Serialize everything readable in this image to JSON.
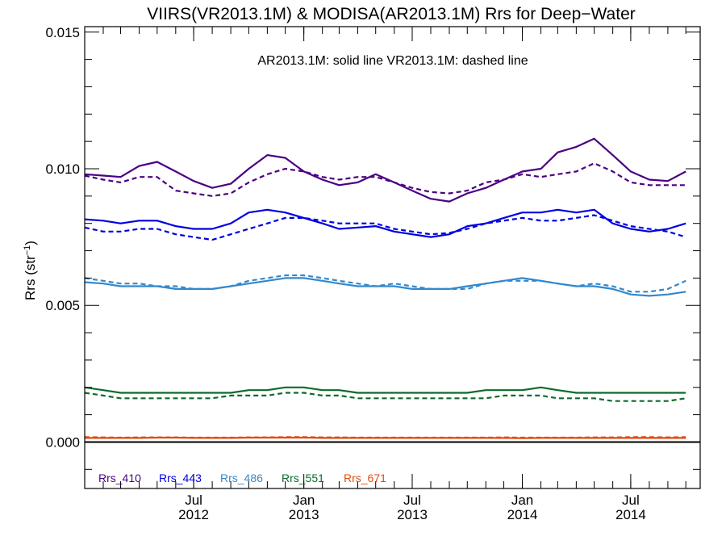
{
  "chart_data": {
    "type": "line",
    "title": "VIIRS(VR2013.1M) & MODISA(AR2013.1M)  Rrs for Deep−Water",
    "annotation": "AR2013.1M: solid line   VR2013.1M: dashed line",
    "ylabel": "Rrs (str",
    "ylabel_sup": "−1",
    "ylabel_close": ")",
    "ylim": [
      -0.0017,
      0.0152
    ],
    "xlim": [
      "2012-01-01",
      "2014-10-25"
    ],
    "yticks": [
      {
        "value": 0.0,
        "label": "0.000"
      },
      {
        "value": 0.005,
        "label": "0.005"
      },
      {
        "value": 0.01,
        "label": "0.010"
      },
      {
        "value": 0.015,
        "label": "0.015"
      }
    ],
    "xticks": [
      {
        "date": "2012-07-01",
        "line1": "Jul",
        "line2": "2012"
      },
      {
        "date": "2013-01-01",
        "line1": "Jan",
        "line2": "2013"
      },
      {
        "date": "2013-07-01",
        "line1": "Jul",
        "line2": "2013"
      },
      {
        "date": "2014-01-01",
        "line1": "Jan",
        "line2": "2014"
      },
      {
        "date": "2014-07-01",
        "line1": "Jul",
        "line2": "2014"
      }
    ],
    "x": [
      "2012-01-01",
      "2012-02-01",
      "2012-03-01",
      "2012-04-01",
      "2012-05-01",
      "2012-06-01",
      "2012-07-01",
      "2012-08-01",
      "2012-09-01",
      "2012-10-01",
      "2012-11-01",
      "2012-12-01",
      "2013-01-01",
      "2013-02-01",
      "2013-03-01",
      "2013-04-01",
      "2013-05-01",
      "2013-06-01",
      "2013-07-01",
      "2013-08-01",
      "2013-09-01",
      "2013-10-01",
      "2013-11-01",
      "2013-12-01",
      "2014-01-01",
      "2014-02-01",
      "2014-03-01",
      "2014-04-01",
      "2014-05-01",
      "2014-06-01",
      "2014-07-01",
      "2014-08-01",
      "2014-09-01",
      "2014-10-01"
    ],
    "series": [
      {
        "name": "Rrs_410",
        "color": "#4b0082",
        "style": "solid",
        "values": [
          0.0098,
          0.00975,
          0.0097,
          0.0101,
          0.01025,
          0.0099,
          0.00955,
          0.0093,
          0.00945,
          0.01,
          0.0105,
          0.0104,
          0.0099,
          0.0096,
          0.0094,
          0.0095,
          0.0098,
          0.0095,
          0.0092,
          0.0089,
          0.0088,
          0.0091,
          0.0093,
          0.0096,
          0.0099,
          0.01,
          0.0106,
          0.0108,
          0.0111,
          0.0105,
          0.0099,
          0.0096,
          0.00955,
          0.0099
        ]
      },
      {
        "name": "Rrs_410",
        "color": "#4b0082",
        "style": "dashed",
        "values": [
          0.00975,
          0.0096,
          0.0095,
          0.0097,
          0.0097,
          0.0092,
          0.0091,
          0.009,
          0.0091,
          0.0095,
          0.0098,
          0.01,
          0.0099,
          0.0097,
          0.0096,
          0.0097,
          0.0097,
          0.0095,
          0.0093,
          0.00915,
          0.0091,
          0.0092,
          0.0095,
          0.0096,
          0.0098,
          0.0097,
          0.0098,
          0.0099,
          0.0102,
          0.0099,
          0.0095,
          0.0094,
          0.0094,
          0.0094
        ]
      },
      {
        "name": "Rrs_443",
        "color": "#0000e0",
        "style": "solid",
        "values": [
          0.00815,
          0.0081,
          0.008,
          0.0081,
          0.0081,
          0.0079,
          0.0078,
          0.0078,
          0.008,
          0.0084,
          0.0085,
          0.0084,
          0.0082,
          0.008,
          0.0078,
          0.00785,
          0.0079,
          0.0077,
          0.0076,
          0.0075,
          0.0076,
          0.0079,
          0.008,
          0.0082,
          0.0084,
          0.0084,
          0.0085,
          0.0084,
          0.0085,
          0.008,
          0.0078,
          0.0077,
          0.0078,
          0.008
        ]
      },
      {
        "name": "Rrs_443",
        "color": "#0000e0",
        "style": "dashed",
        "values": [
          0.00785,
          0.0077,
          0.0077,
          0.0078,
          0.0078,
          0.0076,
          0.0075,
          0.0074,
          0.0076,
          0.0078,
          0.008,
          0.0082,
          0.0082,
          0.0081,
          0.008,
          0.008,
          0.008,
          0.0078,
          0.0077,
          0.0076,
          0.00765,
          0.0078,
          0.008,
          0.0081,
          0.0082,
          0.0081,
          0.0081,
          0.0082,
          0.0083,
          0.0081,
          0.0079,
          0.0078,
          0.0077,
          0.0075
        ]
      },
      {
        "name": "Rrs_486",
        "color": "#3388cc",
        "style": "solid",
        "values": [
          0.00585,
          0.0058,
          0.0057,
          0.0057,
          0.0057,
          0.0056,
          0.0056,
          0.0056,
          0.0057,
          0.0058,
          0.0059,
          0.006,
          0.006,
          0.0059,
          0.0058,
          0.0057,
          0.0057,
          0.0057,
          0.0056,
          0.0056,
          0.0056,
          0.0057,
          0.0058,
          0.0059,
          0.006,
          0.0059,
          0.0058,
          0.0057,
          0.0057,
          0.0056,
          0.0054,
          0.00535,
          0.0054,
          0.0055
        ]
      },
      {
        "name": "Rrs_486",
        "color": "#3388cc",
        "style": "dashed",
        "values": [
          0.006,
          0.0059,
          0.0058,
          0.0058,
          0.0057,
          0.0057,
          0.0056,
          0.0056,
          0.0057,
          0.0059,
          0.006,
          0.0061,
          0.0061,
          0.006,
          0.0059,
          0.0058,
          0.0057,
          0.0058,
          0.0057,
          0.0056,
          0.0056,
          0.0056,
          0.0058,
          0.0059,
          0.0059,
          0.0059,
          0.0058,
          0.0057,
          0.0058,
          0.0057,
          0.0055,
          0.0055,
          0.0056,
          0.0059
        ]
      },
      {
        "name": "Rrs_551",
        "color": "#0b6b2b",
        "style": "solid",
        "values": [
          0.002,
          0.0019,
          0.0018,
          0.0018,
          0.0018,
          0.0018,
          0.0018,
          0.0018,
          0.0018,
          0.0019,
          0.0019,
          0.002,
          0.002,
          0.0019,
          0.0019,
          0.0018,
          0.0018,
          0.0018,
          0.0018,
          0.0018,
          0.0018,
          0.0018,
          0.0019,
          0.0019,
          0.0019,
          0.002,
          0.0019,
          0.0018,
          0.0018,
          0.0018,
          0.0018,
          0.0018,
          0.0018,
          0.0018
        ]
      },
      {
        "name": "Rrs_551",
        "color": "#0b6b2b",
        "style": "dashed",
        "values": [
          0.0018,
          0.0017,
          0.0016,
          0.0016,
          0.0016,
          0.0016,
          0.0016,
          0.0016,
          0.0017,
          0.0017,
          0.0017,
          0.0018,
          0.0018,
          0.0017,
          0.0017,
          0.0016,
          0.0016,
          0.0016,
          0.0016,
          0.0016,
          0.0016,
          0.0016,
          0.0016,
          0.0017,
          0.0017,
          0.0017,
          0.0016,
          0.0016,
          0.0016,
          0.0015,
          0.0015,
          0.0015,
          0.0015,
          0.0016
        ]
      },
      {
        "name": "Rrs_671",
        "color": "#e24a12",
        "style": "solid",
        "values": [
          0.00015,
          0.00015,
          0.00015,
          0.00015,
          0.00016,
          0.00016,
          0.00015,
          0.00015,
          0.00015,
          0.00016,
          0.00016,
          0.00016,
          0.00016,
          0.00015,
          0.00015,
          0.00015,
          0.00015,
          0.00015,
          0.00015,
          0.00015,
          0.00015,
          0.00015,
          0.00015,
          0.00015,
          0.00014,
          0.00015,
          0.00015,
          0.00015,
          0.00015,
          0.00015,
          0.00015,
          0.00015,
          0.00015,
          0.00015
        ]
      },
      {
        "name": "Rrs_671",
        "color": "#e24a12",
        "style": "dashed",
        "values": [
          0.00018,
          0.00017,
          0.00016,
          0.00017,
          0.00017,
          0.00017,
          0.00016,
          0.00016,
          0.00016,
          0.00017,
          0.00017,
          0.00018,
          0.00018,
          0.00017,
          0.00017,
          0.00016,
          0.00016,
          0.00016,
          0.00016,
          0.00016,
          0.00016,
          0.00016,
          0.00016,
          0.00017,
          0.00016,
          0.00016,
          0.00016,
          0.00016,
          0.00017,
          0.00017,
          0.00018,
          0.00018,
          0.00017,
          0.00018
        ]
      }
    ],
    "legend": [
      {
        "label": "Rrs_410",
        "color": "#4b0082"
      },
      {
        "label": "Rrs_443",
        "color": "#0000e0"
      },
      {
        "label": "Rrs_486",
        "color": "#3388cc"
      },
      {
        "label": "Rrs_551",
        "color": "#0b6b2b"
      },
      {
        "label": "Rrs_671",
        "color": "#e24a12"
      }
    ],
    "zero_line": 0.0,
    "grid": false,
    "legend_position": "bottom-left"
  }
}
